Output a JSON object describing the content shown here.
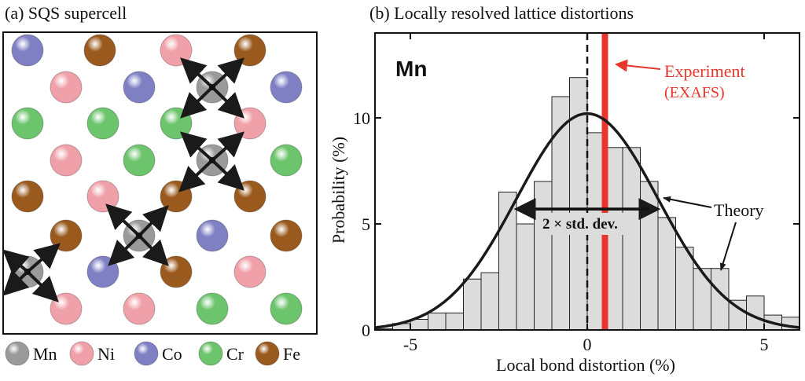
{
  "panel_a": {
    "title": "(a) SQS supercell",
    "legend": [
      {
        "label": "Mn",
        "color": "#9a9a9a"
      },
      {
        "label": "Ni",
        "color": "#f0a0a8"
      },
      {
        "label": "Co",
        "color": "#7f80c4"
      },
      {
        "label": "Cr",
        "color": "#6cc46c"
      },
      {
        "label": "Fe",
        "color": "#9a5a1e"
      }
    ]
  },
  "panel_b": {
    "title": "(b) Locally resolved lattice distortions",
    "element_label": "Mn",
    "experiment_label_1": "Experiment",
    "experiment_label_2": "(EXAFS)",
    "theory_label": "Theory",
    "stddev_label": "2 × std. dev."
  },
  "chart_data": {
    "type": "bar",
    "xlabel": "Local bond distortion (%)",
    "ylabel": "Probability (%)",
    "xlim": [
      -6,
      6
    ],
    "ylim": [
      0,
      14
    ],
    "x_ticks": [
      -5,
      0,
      5
    ],
    "y_ticks": [
      0,
      5,
      10
    ],
    "bin_width": 0.5,
    "bin_starts": [
      -6.0,
      -5.5,
      -5.0,
      -4.5,
      -4.0,
      -3.5,
      -3.0,
      -2.5,
      -2.0,
      -1.5,
      -1.0,
      -0.5,
      0.0,
      0.5,
      1.0,
      1.5,
      2.0,
      2.5,
      3.0,
      3.5,
      4.0,
      4.5,
      5.0,
      5.5
    ],
    "values": [
      0.05,
      0.3,
      0.5,
      0.8,
      0.8,
      2.4,
      2.7,
      6.5,
      5.0,
      7.0,
      11.0,
      11.9,
      9.3,
      8.6,
      8.6,
      7.0,
      5.3,
      3.9,
      2.9,
      2.9,
      1.4,
      1.6,
      0.7,
      0.6
    ],
    "theory_gaussian": {
      "mean": 0.0,
      "std_dev": 2.0,
      "peak": 10.2
    },
    "experiment_value": 0.5,
    "mean_line": 0,
    "stddev_arrow": [
      -2,
      2
    ],
    "colors": {
      "bars": "#dcdcdc",
      "bar_edge": "#222222",
      "experiment": "#e8362c",
      "theory": "#1a1a1a"
    }
  }
}
